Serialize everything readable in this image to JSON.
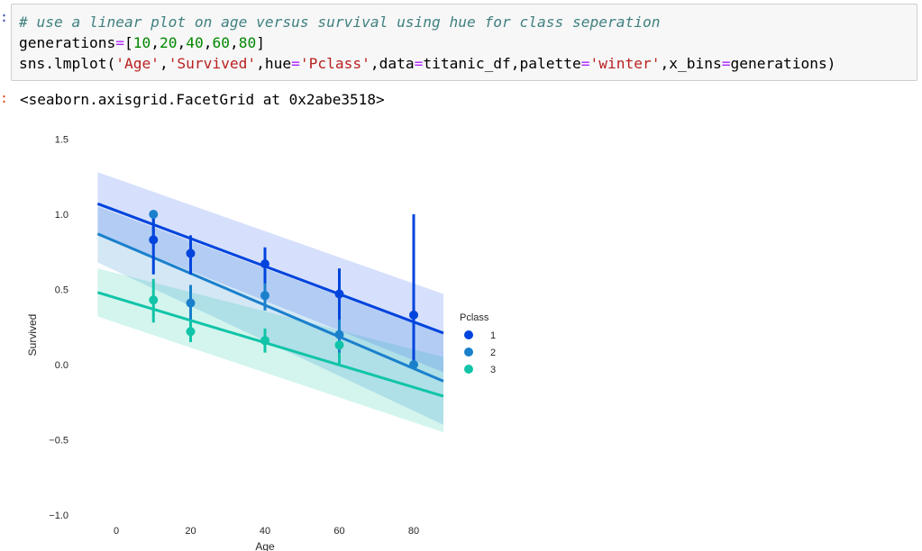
{
  "cell": {
    "in_prompt": ":",
    "out_prompt": ":",
    "code_lines": [
      [
        {
          "t": "# use a linear plot on age versus survival using hue for class seperation",
          "c": "comment"
        }
      ],
      [
        {
          "t": "generations",
          "c": "plain"
        },
        {
          "t": "=",
          "c": "op"
        },
        {
          "t": "[",
          "c": "plain"
        },
        {
          "t": "10",
          "c": "num"
        },
        {
          "t": ",",
          "c": "plain"
        },
        {
          "t": "20",
          "c": "num"
        },
        {
          "t": ",",
          "c": "plain"
        },
        {
          "t": "40",
          "c": "num"
        },
        {
          "t": ",",
          "c": "plain"
        },
        {
          "t": "60",
          "c": "num"
        },
        {
          "t": ",",
          "c": "plain"
        },
        {
          "t": "80",
          "c": "num"
        },
        {
          "t": "]",
          "c": "plain"
        }
      ],
      [
        {
          "t": "sns.lmplot(",
          "c": "plain"
        },
        {
          "t": "'Age'",
          "c": "str"
        },
        {
          "t": ",",
          "c": "plain"
        },
        {
          "t": "'Survived'",
          "c": "str"
        },
        {
          "t": ",hue",
          "c": "plain"
        },
        {
          "t": "=",
          "c": "op"
        },
        {
          "t": "'Pclass'",
          "c": "str"
        },
        {
          "t": ",data",
          "c": "plain"
        },
        {
          "t": "=",
          "c": "op"
        },
        {
          "t": "titanic_df,palette",
          "c": "plain"
        },
        {
          "t": "=",
          "c": "op"
        },
        {
          "t": "'winter'",
          "c": "str"
        },
        {
          "t": ",x_bins",
          "c": "plain"
        },
        {
          "t": "=",
          "c": "op"
        },
        {
          "t": "generations)",
          "c": "plain"
        }
      ]
    ],
    "output_text": "<seaborn.axisgrid.FacetGrid at 0x2abe3518>"
  },
  "chart_data": {
    "type": "scatter",
    "xlabel": "Age",
    "ylabel": "Survived",
    "xlim": [
      -5,
      88
    ],
    "ylim": [
      -1.0,
      1.5
    ],
    "x_ticks": [
      0,
      20,
      40,
      60,
      80
    ],
    "y_ticks": [
      -1.0,
      -0.5,
      0.0,
      0.5,
      1.0,
      1.5
    ],
    "x_tick_labels": [
      "0",
      "20",
      "40",
      "60",
      "80"
    ],
    "y_tick_labels": [
      "−1.0",
      "−0.5",
      "0.0",
      "0.5",
      "1.0",
      "1.5"
    ],
    "x_axis_label": "Age",
    "y_axis_label": "Survived",
    "legend": {
      "title": "Pclass",
      "placement": "right"
    },
    "series": [
      {
        "name": "1",
        "color": "#0044dd",
        "band_color": "#3366ee",
        "fit": {
          "x": [
            -5,
            88
          ],
          "y": [
            1.07,
            0.21
          ]
        },
        "band": {
          "upper": [
            1.28,
            0.47
          ],
          "lower": [
            0.87,
            -0.05
          ]
        },
        "points": [
          {
            "x": 10,
            "y": 0.83,
            "lo": 0.6,
            "hi": 1.0
          },
          {
            "x": 20,
            "y": 0.74,
            "lo": 0.6,
            "hi": 0.86
          },
          {
            "x": 40,
            "y": 0.67,
            "lo": 0.54,
            "hi": 0.78
          },
          {
            "x": 60,
            "y": 0.47,
            "lo": 0.3,
            "hi": 0.64
          },
          {
            "x": 80,
            "y": 0.33,
            "lo": 0.0,
            "hi": 1.0
          }
        ]
      },
      {
        "name": "2",
        "color": "#1a80cc",
        "band_color": "#2288cc",
        "fit": {
          "x": [
            -5,
            88
          ],
          "y": [
            0.87,
            -0.11
          ]
        },
        "band": {
          "upper": [
            1.05,
            0.2
          ],
          "lower": [
            0.68,
            -0.4
          ]
        },
        "points": [
          {
            "x": 10,
            "y": 1.0,
            "lo": 0.8,
            "hi": 1.0
          },
          {
            "x": 20,
            "y": 0.41,
            "lo": 0.3,
            "hi": 0.53
          },
          {
            "x": 40,
            "y": 0.46,
            "lo": 0.36,
            "hi": 0.56
          },
          {
            "x": 60,
            "y": 0.2,
            "lo": 0.08,
            "hi": 0.36
          },
          {
            "x": 80,
            "y": 0.0,
            "lo": 0.0,
            "hi": 0.0
          }
        ]
      },
      {
        "name": "3",
        "color": "#11c4a8",
        "band_color": "#22ccaa",
        "fit": {
          "x": [
            -5,
            88
          ],
          "y": [
            0.48,
            -0.21
          ]
        },
        "band": {
          "upper": [
            0.64,
            0.05
          ],
          "lower": [
            0.32,
            -0.45
          ]
        },
        "points": [
          {
            "x": 10,
            "y": 0.43,
            "lo": 0.28,
            "hi": 0.57
          },
          {
            "x": 20,
            "y": 0.22,
            "lo": 0.15,
            "hi": 0.3
          },
          {
            "x": 40,
            "y": 0.16,
            "lo": 0.08,
            "hi": 0.24
          },
          {
            "x": 60,
            "y": 0.13,
            "lo": 0.0,
            "hi": 0.38
          }
        ]
      }
    ]
  }
}
